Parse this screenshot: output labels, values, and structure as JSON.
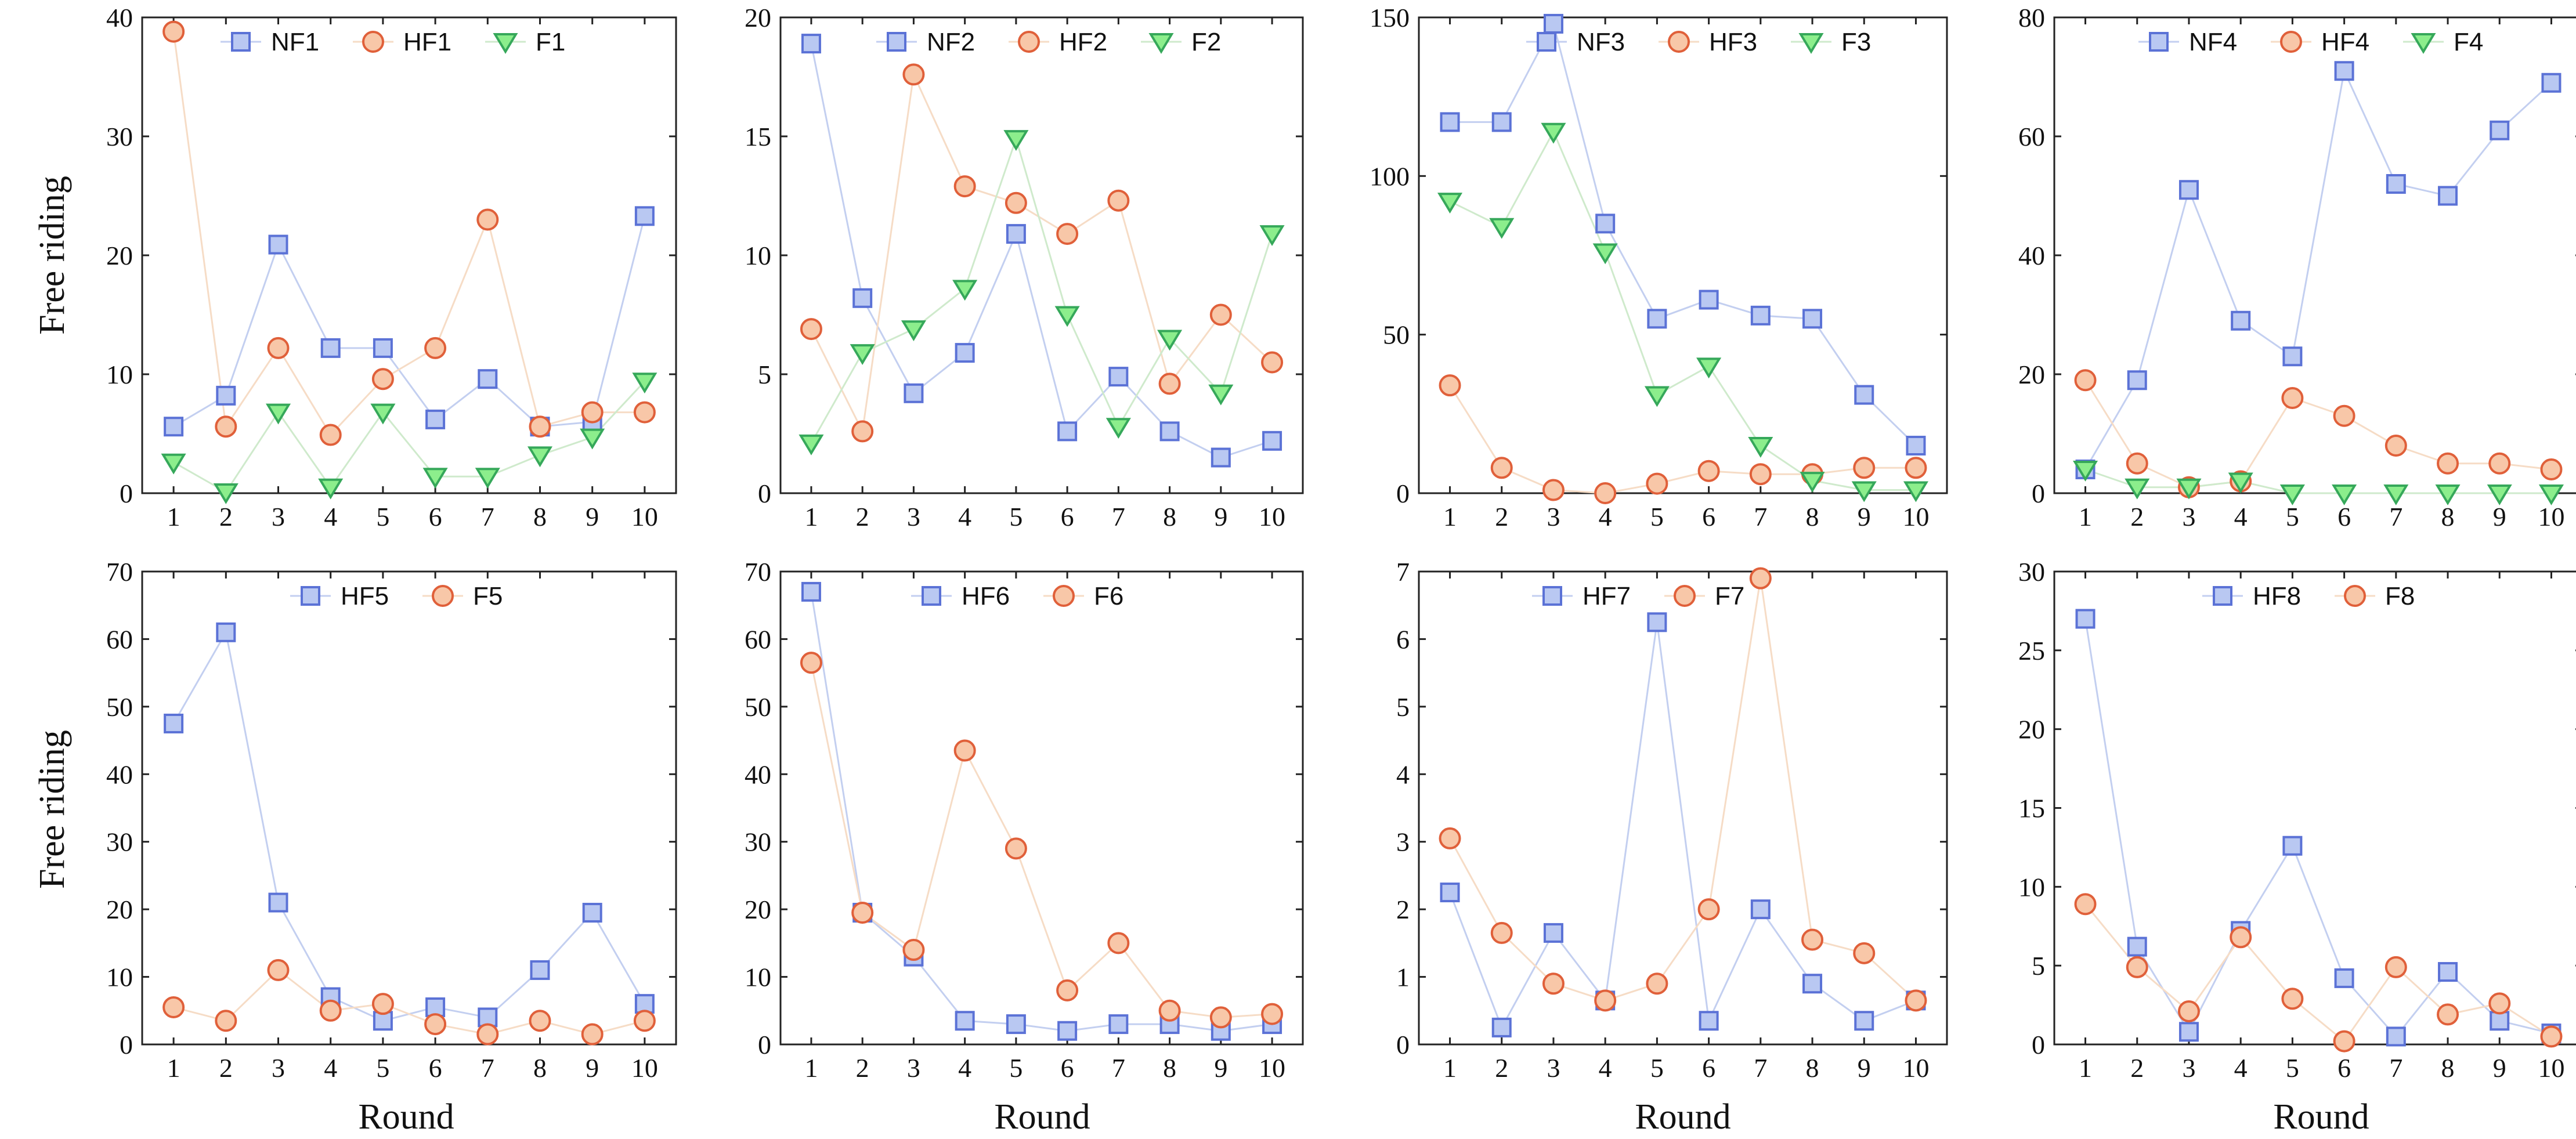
{
  "colors": {
    "NF": {
      "stroke": "#5b72d6",
      "fill": "#b9c8f2",
      "line": "#c3cff0"
    },
    "HF": {
      "stroke": "#e0603a",
      "fill": "#f8c7a8",
      "line": "#f6dcc6"
    },
    "F": {
      "stroke": "#36a85a",
      "fill": "#8cee8c",
      "line": "#cfeacc"
    },
    "axis": "#222222"
  },
  "axis_titles": {
    "y": "Free riding",
    "x": "Round"
  },
  "chart_data": [
    {
      "type": "line",
      "x": [
        1,
        2,
        3,
        4,
        5,
        6,
        7,
        8,
        9,
        10
      ],
      "ylim": [
        0,
        40
      ],
      "yticks": [
        0,
        10,
        20,
        30,
        40
      ],
      "ylabel": "Free riding",
      "xlabel": "",
      "legend": "top",
      "series": [
        {
          "name": "NF1",
          "marker": "square",
          "color": "NF",
          "values": [
            5.6,
            8.2,
            20.9,
            12.2,
            12.2,
            6.2,
            9.6,
            5.6,
            6.0,
            23.3
          ]
        },
        {
          "name": "HF1",
          "marker": "circle",
          "color": "HF",
          "values": [
            38.8,
            5.6,
            12.2,
            4.9,
            9.6,
            12.2,
            23.0,
            5.6,
            6.8,
            6.8
          ]
        },
        {
          "name": "F1",
          "marker": "triangle",
          "color": "F",
          "values": [
            2.6,
            0.1,
            6.8,
            0.5,
            6.8,
            1.4,
            1.4,
            3.2,
            4.7,
            9.4
          ]
        }
      ]
    },
    {
      "type": "line",
      "x": [
        1,
        2,
        3,
        4,
        5,
        6,
        7,
        8,
        9,
        10
      ],
      "ylim": [
        0,
        20
      ],
      "yticks": [
        0,
        5,
        10,
        15,
        20
      ],
      "ylabel": "",
      "xlabel": "",
      "legend": "top",
      "series": [
        {
          "name": "NF2",
          "marker": "square",
          "color": "NF",
          "values": [
            18.9,
            8.2,
            4.2,
            5.9,
            10.9,
            2.6,
            4.9,
            2.6,
            1.5,
            2.2
          ]
        },
        {
          "name": "HF2",
          "marker": "circle",
          "color": "HF",
          "values": [
            6.9,
            2.6,
            17.6,
            12.9,
            12.2,
            10.9,
            12.3,
            4.6,
            7.5,
            5.5
          ]
        },
        {
          "name": "F2",
          "marker": "triangle",
          "color": "F",
          "values": [
            2.1,
            5.9,
            6.9,
            8.6,
            14.9,
            7.5,
            2.8,
            6.5,
            4.2,
            10.9
          ]
        }
      ]
    },
    {
      "type": "line",
      "x": [
        1,
        2,
        3,
        4,
        5,
        6,
        7,
        8,
        9,
        10
      ],
      "ylim": [
        0,
        150
      ],
      "yticks": [
        0,
        50,
        100,
        150
      ],
      "ylabel": "",
      "xlabel": "",
      "legend": "top",
      "series": [
        {
          "name": "NF3",
          "marker": "square",
          "color": "NF",
          "values": [
            117,
            117,
            148,
            85,
            55,
            61,
            56,
            55,
            31,
            15
          ]
        },
        {
          "name": "HF3",
          "marker": "circle",
          "color": "HF",
          "values": [
            34,
            8,
            1,
            0,
            3,
            7,
            6,
            6,
            8,
            8
          ]
        },
        {
          "name": "F3",
          "marker": "triangle",
          "color": "F",
          "values": [
            92,
            84,
            114,
            76,
            31,
            40,
            15,
            4,
            1,
            1
          ]
        }
      ]
    },
    {
      "type": "line",
      "x": [
        1,
        2,
        3,
        4,
        5,
        6,
        7,
        8,
        9,
        10
      ],
      "ylim": [
        0,
        80
      ],
      "yticks": [
        0,
        20,
        40,
        60,
        80
      ],
      "ylabel": "",
      "xlabel": "",
      "legend": "top",
      "series": [
        {
          "name": "NF4",
          "marker": "square",
          "color": "NF",
          "values": [
            4,
            19,
            51,
            29,
            23,
            71,
            52,
            50,
            61,
            69
          ]
        },
        {
          "name": "HF4",
          "marker": "circle",
          "color": "HF",
          "values": [
            19,
            5,
            1,
            2,
            16,
            13,
            8,
            5,
            5,
            4
          ]
        },
        {
          "name": "F4",
          "marker": "triangle",
          "color": "F",
          "values": [
            4,
            1,
            1,
            2,
            0,
            0,
            0,
            0,
            0,
            0
          ]
        }
      ]
    },
    {
      "type": "line",
      "x": [
        1,
        2,
        3,
        4,
        5,
        6,
        7,
        8,
        9,
        10
      ],
      "ylim": [
        0,
        70
      ],
      "yticks": [
        0,
        10,
        20,
        30,
        40,
        50,
        60,
        70
      ],
      "ylabel": "Free riding",
      "xlabel": "Round",
      "legend": "top",
      "series": [
        {
          "name": "HF5",
          "marker": "square",
          "color": "NF",
          "values": [
            47.5,
            61,
            21,
            7,
            3.5,
            5.5,
            4,
            11,
            19.5,
            6
          ]
        },
        {
          "name": "F5",
          "marker": "circle",
          "color": "HF",
          "values": [
            5.5,
            3.5,
            11,
            5,
            6,
            3,
            1.5,
            3.5,
            1.5,
            3.5
          ]
        }
      ]
    },
    {
      "type": "line",
      "x": [
        1,
        2,
        3,
        4,
        5,
        6,
        7,
        8,
        9,
        10
      ],
      "ylim": [
        0,
        70
      ],
      "yticks": [
        0,
        10,
        20,
        30,
        40,
        50,
        60,
        70
      ],
      "ylabel": "",
      "xlabel": "Round",
      "legend": "top",
      "series": [
        {
          "name": "HF6",
          "marker": "square",
          "color": "NF",
          "values": [
            67,
            19.5,
            13,
            3.5,
            3,
            2,
            3,
            3,
            2,
            3
          ]
        },
        {
          "name": "F6",
          "marker": "circle",
          "color": "HF",
          "values": [
            56.5,
            19.5,
            14,
            43.5,
            29,
            8,
            15,
            5,
            4,
            4.5
          ]
        }
      ]
    },
    {
      "type": "line",
      "x": [
        1,
        2,
        3,
        4,
        5,
        6,
        7,
        8,
        9,
        10
      ],
      "ylim": [
        0,
        7
      ],
      "yticks": [
        0,
        1,
        2,
        3,
        4,
        5,
        6,
        7
      ],
      "ylabel": "",
      "xlabel": "Round",
      "legend": "top",
      "series": [
        {
          "name": "HF7",
          "marker": "square",
          "color": "NF",
          "values": [
            2.25,
            0.25,
            1.65,
            0.65,
            6.25,
            0.35,
            2.0,
            0.9,
            0.35,
            0.65
          ]
        },
        {
          "name": "F7",
          "marker": "circle",
          "color": "HF",
          "values": [
            3.05,
            1.65,
            0.9,
            0.65,
            0.9,
            2.0,
            6.9,
            1.55,
            1.35,
            0.65
          ]
        }
      ]
    },
    {
      "type": "line",
      "x": [
        1,
        2,
        3,
        4,
        5,
        6,
        7,
        8,
        9,
        10
      ],
      "ylim": [
        0,
        30
      ],
      "yticks": [
        0,
        5,
        10,
        15,
        20,
        25,
        30
      ],
      "ylabel": "",
      "xlabel": "Round",
      "legend": "top",
      "series": [
        {
          "name": "HF8",
          "marker": "square",
          "color": "NF",
          "values": [
            27,
            6.2,
            0.8,
            7.2,
            12.6,
            4.2,
            0.5,
            4.6,
            1.5,
            0.7
          ]
        },
        {
          "name": "F8",
          "marker": "circle",
          "color": "HF",
          "values": [
            8.9,
            4.9,
            2.1,
            6.8,
            2.9,
            0.2,
            4.9,
            1.9,
            2.6,
            0.5
          ]
        }
      ]
    }
  ]
}
